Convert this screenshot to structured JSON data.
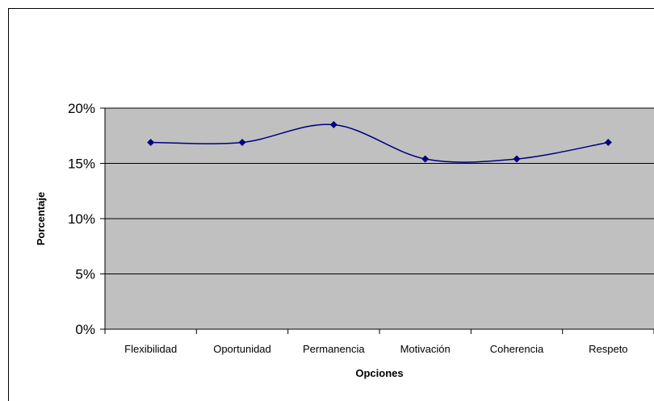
{
  "chart_data": {
    "type": "line",
    "title": "",
    "xlabel": "Opciones",
    "ylabel": "Porcentaje",
    "categories": [
      "Flexibilidad",
      "Oportunidad",
      "Permanencia",
      "Motivación",
      "Coherencia",
      "Respeto"
    ],
    "series": [
      {
        "values": [
          16.9,
          16.9,
          18.5,
          15.4,
          15.4,
          16.9
        ],
        "color": "#000080"
      }
    ],
    "ylim": [
      0,
      20
    ],
    "yticks": [
      0,
      5,
      10,
      15,
      20
    ],
    "ytick_labels": [
      "0%",
      "5%",
      "10%",
      "15%",
      "20%"
    ],
    "grid": true,
    "plot_background": "#c0c0c0",
    "smooth": true,
    "marker": "diamond"
  }
}
